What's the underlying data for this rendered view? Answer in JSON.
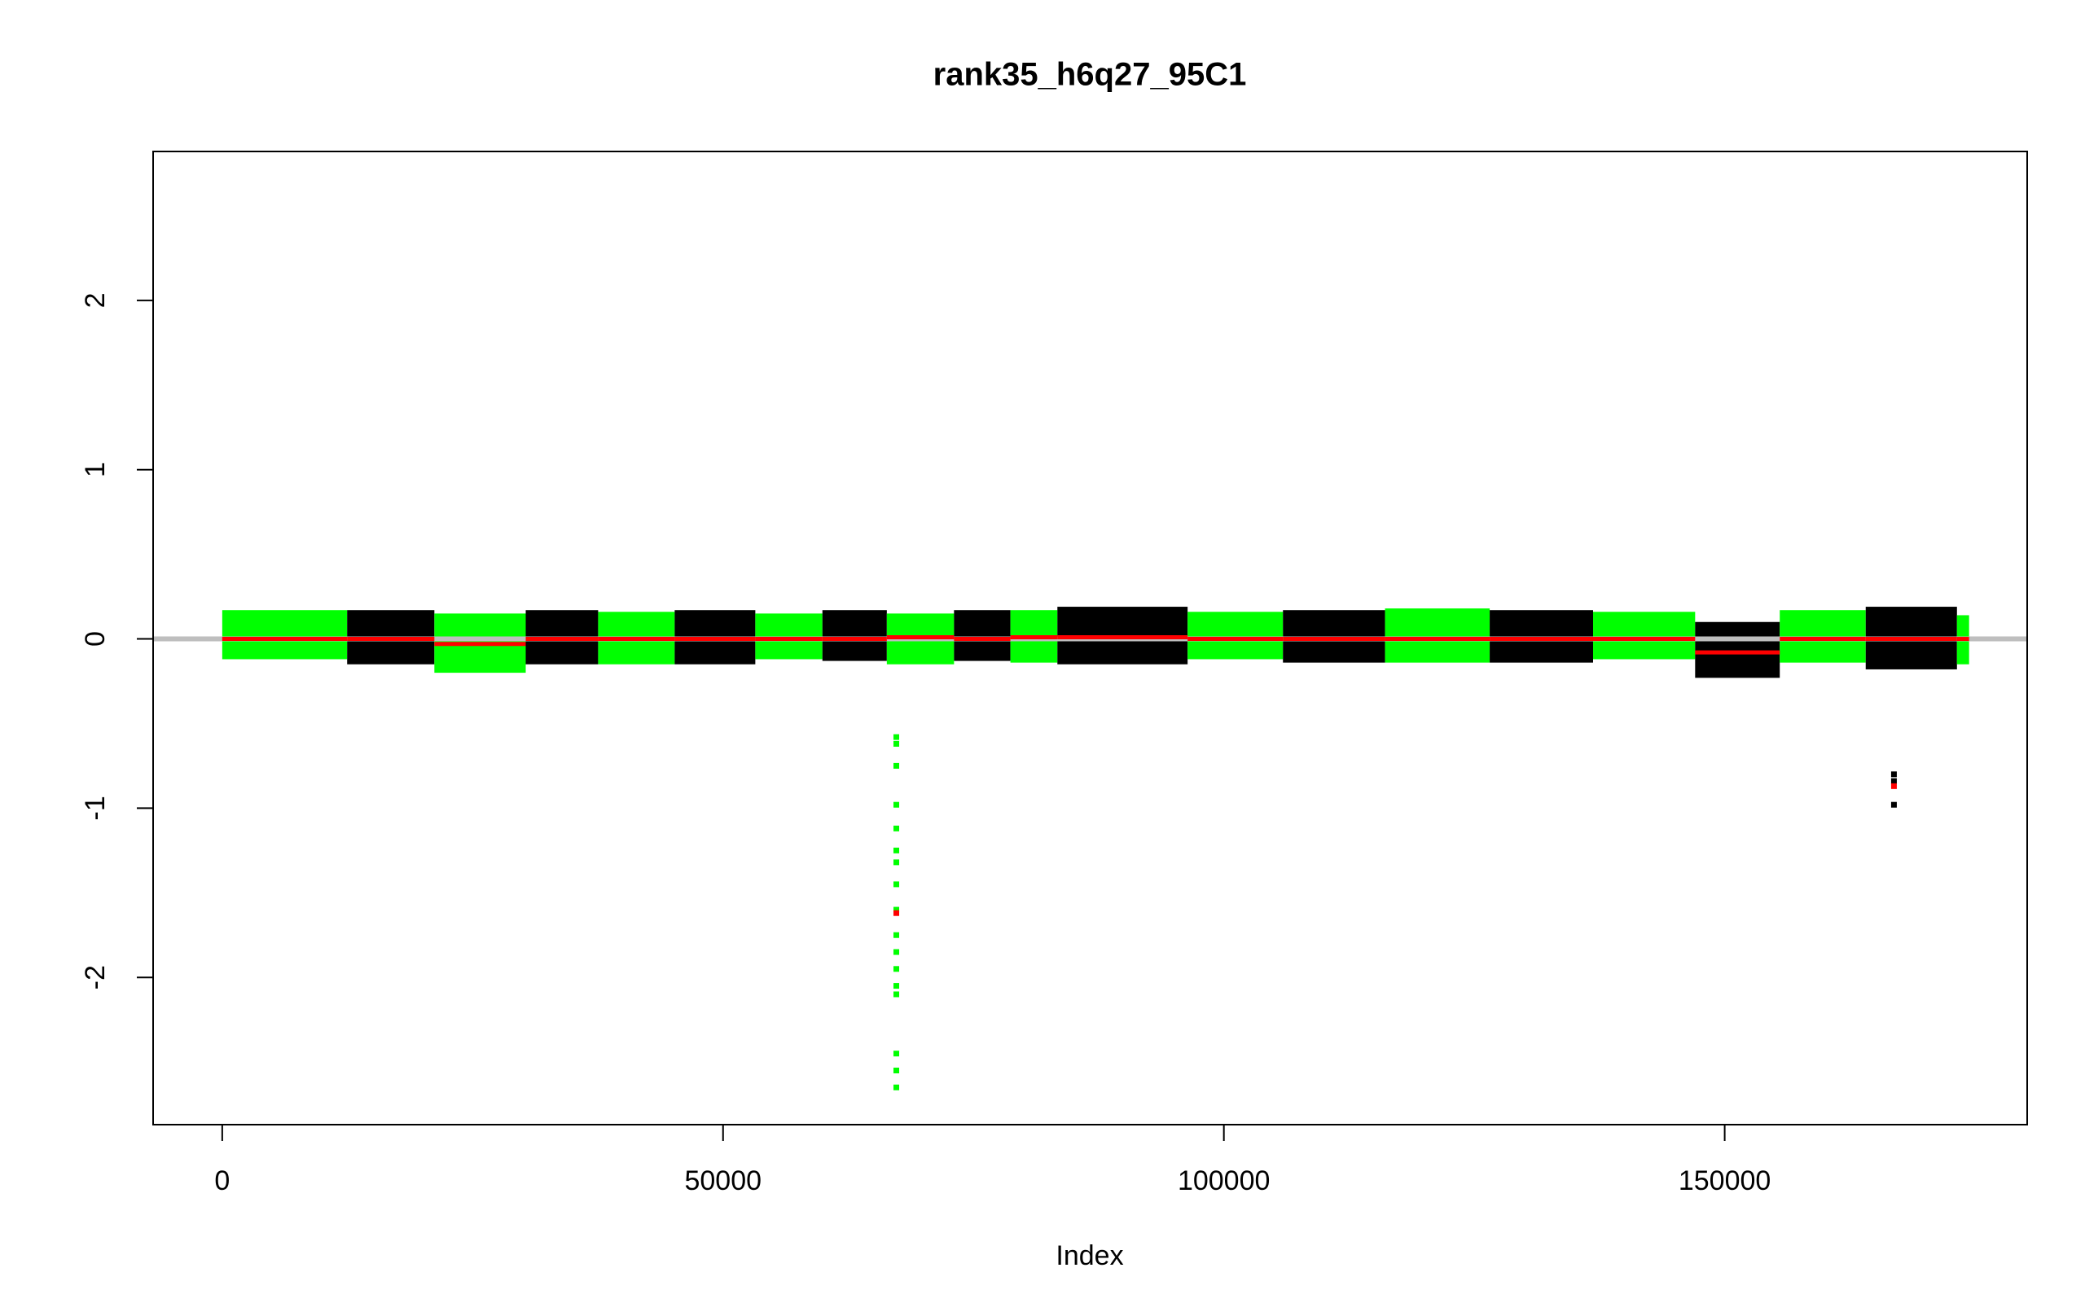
{
  "chart_data": {
    "type": "scatter",
    "title": "rank35_h6q27_95C1",
    "x_label": "Index",
    "xlim": [
      -6900,
      180200
    ],
    "ylim": [
      -2.87,
      2.88
    ],
    "xticks": [
      0,
      50000,
      100000,
      150000
    ],
    "yticks": [
      -2,
      -1,
      0,
      1,
      2
    ],
    "hline": 0,
    "hline_color": "#bebebe",
    "mean_color": "#ff0000",
    "segments": [
      {
        "x": [
          0,
          12470
        ],
        "range": [
          -0.12,
          0.17
        ],
        "mean": 0,
        "color": "#00ff00"
      },
      {
        "x": [
          12470,
          21180
        ],
        "range": [
          -0.15,
          0.17
        ],
        "mean": 0,
        "color": "#000000"
      },
      {
        "x": [
          21180,
          30300
        ],
        "range": [
          -0.2,
          0.15
        ],
        "mean": -0.03,
        "color": "#00ff00"
      },
      {
        "x": [
          30300,
          37530
        ],
        "range": [
          -0.15,
          0.17
        ],
        "mean": 0,
        "color": "#000000"
      },
      {
        "x": [
          37530,
          45170
        ],
        "range": [
          -0.15,
          0.16
        ],
        "mean": 0,
        "color": "#00ff00"
      },
      {
        "x": [
          45170,
          53220
        ],
        "range": [
          -0.15,
          0.17
        ],
        "mean": 0,
        "color": "#000000"
      },
      {
        "x": [
          53220,
          59920
        ],
        "range": [
          -0.12,
          0.15
        ],
        "mean": 0,
        "color": "#00ff00"
      },
      {
        "x": [
          59920,
          66350
        ],
        "range": [
          -0.13,
          0.17
        ],
        "mean": 0,
        "color": "#000000"
      },
      {
        "x": [
          66350,
          73060
        ],
        "range": [
          -0.15,
          0.15
        ],
        "mean": 0.01,
        "color": "#00ff00"
      },
      {
        "x": [
          73060,
          78690
        ],
        "range": [
          -0.13,
          0.17
        ],
        "mean": 0,
        "color": "#000000"
      },
      {
        "x": [
          78690,
          83380
        ],
        "range": [
          -0.14,
          0.17
        ],
        "mean": 0.01,
        "color": "#00ff00"
      },
      {
        "x": [
          83380,
          96380
        ],
        "range": [
          -0.15,
          0.19
        ],
        "mean": 0.01,
        "color": "#000000"
      },
      {
        "x": [
          96380,
          105900
        ],
        "range": [
          -0.12,
          0.16
        ],
        "mean": 0,
        "color": "#00ff00"
      },
      {
        "x": [
          105900,
          116090
        ],
        "range": [
          -0.14,
          0.17
        ],
        "mean": 0,
        "color": "#000000"
      },
      {
        "x": [
          116090,
          126540
        ],
        "range": [
          -0.14,
          0.18
        ],
        "mean": 0,
        "color": "#00ff00"
      },
      {
        "x": [
          126540,
          136860
        ],
        "range": [
          -0.14,
          0.17
        ],
        "mean": 0,
        "color": "#000000"
      },
      {
        "x": [
          136860,
          147050
        ],
        "range": [
          -0.12,
          0.16
        ],
        "mean": 0,
        "color": "#00ff00"
      },
      {
        "x": [
          147050,
          155500
        ],
        "range": [
          -0.23,
          0.1
        ],
        "mean": -0.08,
        "color": "#000000"
      },
      {
        "x": [
          155500,
          164080
        ],
        "range": [
          -0.14,
          0.17
        ],
        "mean": 0,
        "color": "#00ff00"
      },
      {
        "x": [
          164080,
          173190
        ],
        "range": [
          -0.18,
          0.19
        ],
        "mean": 0,
        "color": "#000000"
      },
      {
        "x": [
          173190,
          174400
        ],
        "range": [
          -0.15,
          0.14
        ],
        "mean": 0,
        "color": "#00ff00"
      }
    ],
    "series": [
      {
        "color": "#00ff00",
        "x": [
          67300,
          67300,
          67300,
          67300,
          67300,
          67300,
          67300,
          67300,
          67300,
          67300,
          67300,
          67300,
          67300,
          67300,
          67300,
          67300,
          67300
        ],
        "values": [
          -0.58,
          -0.62,
          -0.75,
          -0.98,
          -1.12,
          -1.25,
          -1.32,
          -1.45,
          -1.6,
          -1.75,
          -1.85,
          -1.95,
          -2.05,
          -2.1,
          -2.45,
          -2.55,
          -2.65
        ]
      },
      {
        "color": "#000000",
        "x": [
          166900,
          166900,
          166900
        ],
        "values": [
          -0.8,
          -0.84,
          -0.98
        ]
      },
      {
        "color": "#ff0000",
        "x": [
          67300,
          166900
        ],
        "values": [
          -1.62,
          -0.87
        ]
      }
    ]
  }
}
